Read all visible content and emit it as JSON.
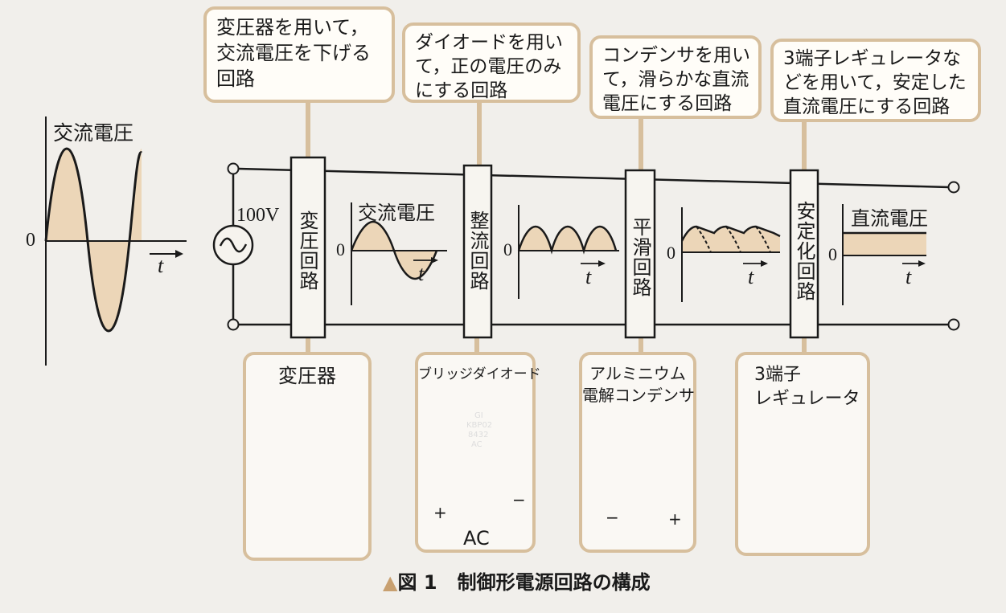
{
  "callouts": {
    "transformer": [
      "変圧器を用いて，",
      "交流電圧を下げる",
      "回路"
    ],
    "rectifier": [
      "ダイオードを用い",
      "て，正の電圧のみ",
      "にする回路"
    ],
    "smoothing": [
      "コンデンサを用い",
      "て，滑らかな直流",
      "電圧にする回路"
    ],
    "stabilizer": [
      "3端子レギュレータな",
      "どを用いて，安定した",
      "直流電圧にする回路"
    ]
  },
  "blocks": {
    "transformer": "変圧回路",
    "rectifier": "整流回路",
    "smoothing": "平滑回路",
    "stabilizer": "安定化回路"
  },
  "graphs": {
    "input_title": "交流電圧",
    "after_transformer_title": "交流電圧",
    "output_title": "直流電圧",
    "zero": "0",
    "time_axis": "t"
  },
  "source": {
    "voltage": "100V"
  },
  "parts": {
    "transformer": {
      "title": [
        "変圧器"
      ]
    },
    "bridge_diode": {
      "title": [
        "ブリッジダイオード"
      ],
      "marking": [
        "GI",
        "KBP02",
        "8432",
        "AC"
      ],
      "plus": "+",
      "minus": "−",
      "ac": "AC"
    },
    "capacitor": {
      "title": [
        "アルミニウム",
        "電解コンデンサ"
      ],
      "minus": "−",
      "plus": "+"
    },
    "regulator": {
      "title": [
        "3端子",
        "レギュレータ"
      ]
    }
  },
  "caption": {
    "marker": "▲",
    "figure": "図 1",
    "title": "制御形電源回路の構成"
  },
  "colors": {
    "callout_border": "#d7bf9d",
    "wave_fill": "#ecd6b8",
    "line": "#1a1a1a",
    "caption_marker": "#c8a070"
  }
}
